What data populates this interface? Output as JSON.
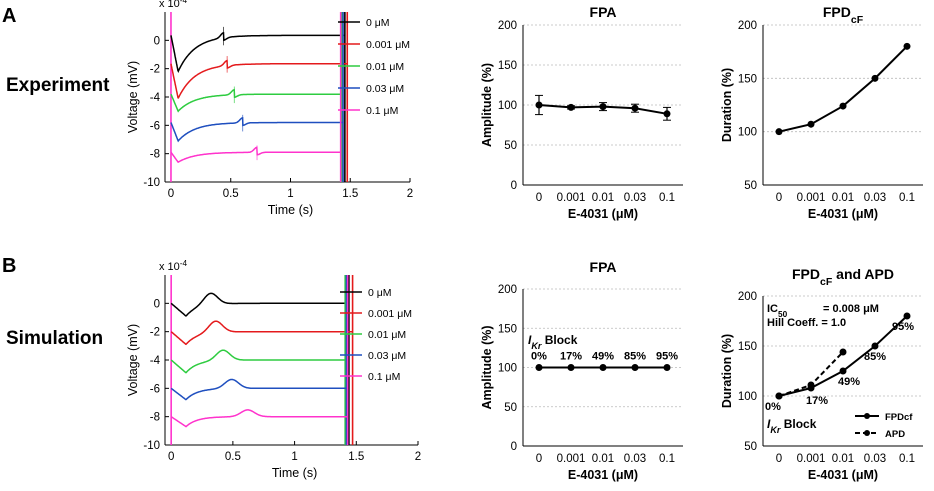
{
  "panels": {
    "A": {
      "letter": "A",
      "row_label": "Experiment"
    },
    "B": {
      "letter": "B",
      "row_label": "Simulation"
    }
  },
  "chart_data": [
    {
      "id": "trace-exp",
      "type": "line",
      "xlabel": "Time (s)",
      "ylabel": "Voltage (mV)",
      "sci_label": "x 10-4",
      "sci_base": "x 10",
      "sci_exp": "-4",
      "xlim": [
        -0.05,
        2
      ],
      "ylim": [
        -10,
        2
      ],
      "xticks": [
        0,
        0.5,
        1,
        1.5,
        2
      ],
      "xticklabels": [
        "0",
        "0.5",
        "1",
        "1.5",
        "2"
      ],
      "yticks": [
        0,
        -2,
        -4,
        -6,
        -8,
        -10
      ],
      "yticklabels": [
        "0",
        "-2",
        "-4",
        "-6",
        "-8",
        "-10"
      ],
      "series": [
        {
          "name": "0 μM",
          "color": "#000000",
          "baseline": 0.35,
          "trough": -2.2,
          "spike_t": 0.44,
          "spike_amp": 1.0,
          "end_t": 1.455
        },
        {
          "name": "0.001 μM",
          "color": "#e41a1c",
          "baseline": -1.65,
          "trough": -4.1,
          "spike_t": 0.47,
          "spike_amp": 0.9,
          "end_t": 1.475
        },
        {
          "name": "0.01 μM",
          "color": "#2ecc40",
          "baseline": -3.8,
          "trough": -5.0,
          "spike_t": 0.53,
          "spike_amp": 0.9,
          "end_t": 1.43
        },
        {
          "name": "0.03 μM",
          "color": "#1f4fbf",
          "baseline": -5.8,
          "trough": -7.1,
          "spike_t": 0.6,
          "spike_amp": 0.9,
          "end_t": 1.44
        },
        {
          "name": "0.1 μM",
          "color": "#ff33cc",
          "baseline": -7.9,
          "trough": -8.6,
          "spike_t": 0.72,
          "spike_amp": 0.8,
          "end_t": 1.42
        }
      ]
    },
    {
      "id": "fpa-exp",
      "type": "line-errorbar",
      "title": "FPA",
      "xlabel": "E-4031 (μM)",
      "ylabel": "Amplitude (%)",
      "categories": [
        "0",
        "0.001",
        "0.01",
        "0.03",
        "0.1"
      ],
      "values": [
        100,
        97,
        98,
        96,
        89
      ],
      "errors": [
        12,
        2,
        5,
        5,
        8
      ],
      "ylim": [
        0,
        200
      ],
      "yticks": [
        0,
        50,
        100,
        150,
        200
      ],
      "yticklabels": [
        "0",
        "50",
        "100",
        "150",
        "200"
      ]
    },
    {
      "id": "fpd-exp",
      "type": "line",
      "title": "FPDcF",
      "title_main": "FPD",
      "title_sub": "cF",
      "xlabel": "E-4031 (μM)",
      "ylabel": "Duration (%)",
      "categories": [
        "0",
        "0.001",
        "0.01",
        "0.03",
        "0.1"
      ],
      "values": [
        100,
        107,
        124,
        150,
        180
      ],
      "ylim": [
        50,
        200
      ],
      "yticks": [
        50,
        100,
        150,
        200
      ],
      "yticklabels": [
        "50",
        "100",
        "150",
        "200"
      ]
    },
    {
      "id": "trace-sim",
      "type": "line",
      "xlabel": "Time (s)",
      "ylabel": "Voltage (mV)",
      "sci_label": "x 10-4",
      "sci_base": "x 10",
      "sci_exp": "-4",
      "xlim": [
        -0.05,
        2
      ],
      "ylim": [
        -10,
        2
      ],
      "xticks": [
        0,
        0.5,
        1,
        1.5,
        2
      ],
      "xticklabels": [
        "0",
        "0.5",
        "1",
        "1.5",
        "2"
      ],
      "yticks": [
        0,
        -2,
        -4,
        -6,
        -8,
        -10
      ],
      "yticklabels": [
        "0",
        "-2",
        "-4",
        "-6",
        "-8",
        "-10"
      ],
      "series": [
        {
          "name": "0 μM",
          "color": "#000000",
          "baseline": 0.0,
          "trough": -0.9,
          "bump_t": 0.32,
          "bump_amp": 1.0,
          "end_t": 1.44
        },
        {
          "name": "0.001 μM",
          "color": "#e41a1c",
          "baseline": -2.0,
          "trough": -2.9,
          "bump_t": 0.36,
          "bump_amp": 1.0,
          "end_t": 1.47
        },
        {
          "name": "0.01 μM",
          "color": "#2ecc40",
          "baseline": -4.0,
          "trough": -4.9,
          "bump_t": 0.42,
          "bump_amp": 0.9,
          "end_t": 1.41
        },
        {
          "name": "0.03 μM",
          "color": "#1f4fbf",
          "baseline": -6.0,
          "trough": -6.8,
          "bump_t": 0.49,
          "bump_amp": 0.8,
          "end_t": 1.42
        },
        {
          "name": "0.1 μM",
          "color": "#ff33cc",
          "baseline": -8.0,
          "trough": -8.7,
          "bump_t": 0.62,
          "bump_amp": 0.6,
          "end_t": 1.43
        }
      ]
    },
    {
      "id": "fpa-sim",
      "type": "line",
      "title": "FPA",
      "xlabel": "E-4031 (μM)",
      "ylabel": "Amplitude (%)",
      "categories": [
        "0",
        "0.001",
        "0.01",
        "0.03",
        "0.1"
      ],
      "values": [
        100,
        100,
        100,
        100,
        100
      ],
      "ylim": [
        0,
        200
      ],
      "yticks": [
        0,
        50,
        100,
        150,
        200
      ],
      "yticklabels": [
        "0",
        "50",
        "100",
        "150",
        "200"
      ],
      "block_label": "IKr Block",
      "block_main": "I",
      "block_sub": "Kr",
      "block_word": " Block",
      "block_values": [
        "0%",
        "17%",
        "49%",
        "85%",
        "95%"
      ]
    },
    {
      "id": "fpd-apd-sim",
      "type": "line",
      "title": "FPDcF and APD",
      "title_main": "FPD",
      "title_sub": "cF",
      "title_tail": " and APD",
      "xlabel": "E-4031 (μM)",
      "ylabel": "Duration (%)",
      "categories": [
        "0",
        "0.001",
        "0.01",
        "0.03",
        "0.1"
      ],
      "series": [
        {
          "name": "FPDcf",
          "values": [
            100,
            108,
            125,
            150,
            180
          ],
          "dash": "solid"
        },
        {
          "name": "APD",
          "values": [
            100,
            111,
            144,
            null,
            null
          ],
          "dash": "dashed"
        }
      ],
      "ylim": [
        50,
        200
      ],
      "yticks": [
        50,
        100,
        150,
        200
      ],
      "yticklabels": [
        "50",
        "100",
        "150",
        "200"
      ],
      "ic50_label": "IC50",
      "ic50_main": "IC",
      "ic50_sub": "50",
      "ic50_value": "= 0.008 μM",
      "hill_label": "Hill Coeff. = 1.0",
      "block_label": "IKr Block",
      "block_main": "I",
      "block_sub": "Kr",
      "block_word": " Block",
      "block_values": [
        "0%",
        "17%",
        "49%",
        "85%",
        "95%"
      ]
    }
  ]
}
